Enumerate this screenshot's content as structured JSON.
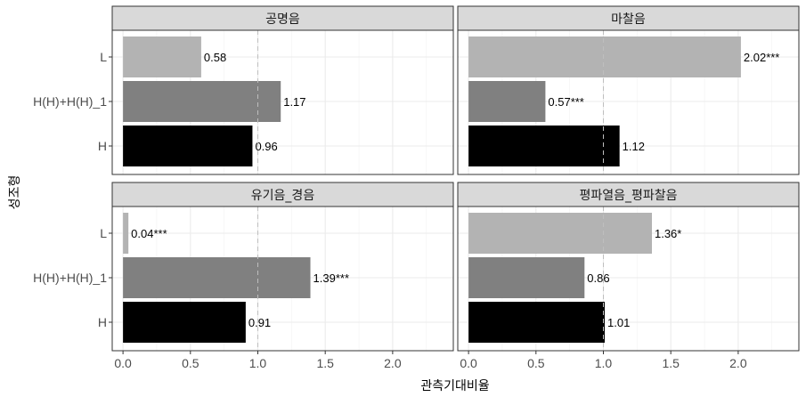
{
  "chart_data": {
    "type": "bar",
    "orientation": "horizontal",
    "xlabel": "관측기대비율",
    "ylabel": "성조형",
    "xlim": [
      -0.08,
      2.45
    ],
    "xticks": [
      "0.0",
      "0.5",
      "1.0",
      "1.5",
      "2.0"
    ],
    "xtick_values": [
      0,
      0.5,
      1.0,
      1.5,
      2.0
    ],
    "reference_line": 1.0,
    "categories": [
      "L",
      "H(H)+H(H)_1",
      "H"
    ],
    "category_colors": [
      "#b3b3b3",
      "#808080",
      "#000000"
    ],
    "grid": true,
    "panels": [
      {
        "title": "공명음",
        "values": [
          0.58,
          1.17,
          0.96
        ],
        "labels": [
          "0.58",
          "1.17",
          "0.96"
        ]
      },
      {
        "title": "마찰음",
        "values": [
          2.02,
          0.57,
          1.12
        ],
        "labels": [
          "2.02***",
          "0.57***",
          "1.12"
        ]
      },
      {
        "title": "유기음_경음",
        "values": [
          0.04,
          1.39,
          0.91
        ],
        "labels": [
          "0.04***",
          "1.39***",
          "0.91"
        ]
      },
      {
        "title": "평파열음_평파찰음",
        "values": [
          1.36,
          0.86,
          1.01
        ],
        "labels": [
          "1.36*",
          "0.86",
          "1.01"
        ]
      }
    ]
  }
}
